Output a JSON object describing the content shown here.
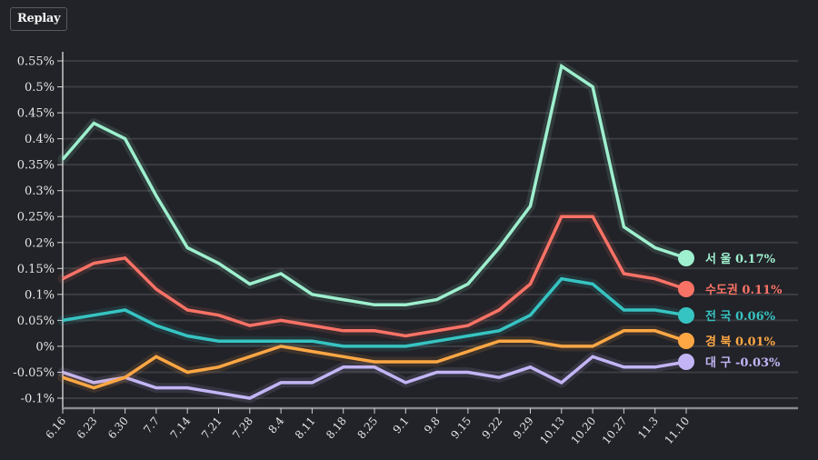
{
  "controls": {
    "replay_label": "Replay"
  },
  "chart_data": {
    "type": "line",
    "title": "",
    "xlabel": "",
    "ylabel": "",
    "ylim": [
      -0.1,
      0.55
    ],
    "yticks": [
      -0.1,
      -0.05,
      0,
      0.05,
      0.1,
      0.15,
      0.2,
      0.25,
      0.3,
      0.35,
      0.4,
      0.45,
      0.5,
      0.55
    ],
    "ytick_labels": [
      "-0.1%",
      "-0.05%",
      "0%",
      "0.05%",
      "0.1%",
      "0.15%",
      "0.2%",
      "0.25%",
      "0.3%",
      "0.35%",
      "0.4%",
      "0.45%",
      "0.5%",
      "0.55%"
    ],
    "grid": true,
    "legend": "right-end-labels",
    "categories": [
      "6.16",
      "6.23",
      "6.30",
      "7.7",
      "7.14",
      "7.21",
      "7.28",
      "8.4",
      "8.11",
      "8.18",
      "8.25",
      "9.1",
      "9.8",
      "9.15",
      "9.22",
      "9.29",
      "10.13",
      "10.20",
      "10.27",
      "11.3",
      "11.10"
    ],
    "series": [
      {
        "name": "서 울",
        "end_label": "0.17%",
        "color": "#9ef0cf",
        "values": [
          0.36,
          0.43,
          0.4,
          0.29,
          0.19,
          0.16,
          0.12,
          0.14,
          0.1,
          0.09,
          0.08,
          0.08,
          0.09,
          0.12,
          0.19,
          0.27,
          0.54,
          0.5,
          0.23,
          0.19,
          0.17
        ]
      },
      {
        "name": "수도권",
        "end_label": "0.11%",
        "color": "#fa7266",
        "values": [
          0.13,
          0.16,
          0.17,
          0.11,
          0.07,
          0.06,
          0.04,
          0.05,
          0.04,
          0.03,
          0.03,
          0.02,
          0.03,
          0.04,
          0.07,
          0.12,
          0.25,
          0.25,
          0.14,
          0.13,
          0.11
        ]
      },
      {
        "name": "전 국",
        "end_label": "0.06%",
        "color": "#36c4c2",
        "values": [
          0.05,
          0.06,
          0.07,
          0.04,
          0.02,
          0.01,
          0.01,
          0.01,
          0.01,
          0.0,
          0.0,
          0.0,
          0.01,
          0.02,
          0.03,
          0.06,
          0.13,
          0.12,
          0.07,
          0.07,
          0.06
        ]
      },
      {
        "name": "경 북",
        "end_label": "0.01%",
        "color": "#fda744",
        "values": [
          -0.06,
          -0.08,
          -0.06,
          -0.02,
          -0.05,
          -0.04,
          -0.02,
          0.0,
          -0.01,
          -0.02,
          -0.03,
          -0.03,
          -0.03,
          -0.01,
          0.01,
          0.01,
          0.0,
          0.0,
          0.03,
          0.03,
          0.01
        ]
      },
      {
        "name": "대 구",
        "end_label": "-0.03%",
        "color": "#c3b5f5",
        "values": [
          -0.05,
          -0.07,
          -0.06,
          -0.08,
          -0.08,
          -0.09,
          -0.1,
          -0.07,
          -0.07,
          -0.04,
          -0.04,
          -0.07,
          -0.05,
          -0.05,
          -0.06,
          -0.04,
          -0.07,
          -0.02,
          -0.04,
          -0.04,
          -0.03
        ]
      }
    ]
  }
}
